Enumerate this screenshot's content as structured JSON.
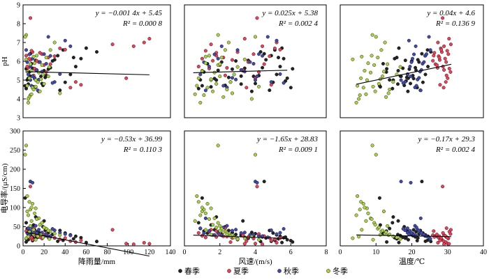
{
  "series_names": [
    "春季",
    "夏季",
    "秋季",
    "冬季"
  ],
  "series_colors": [
    "#222222",
    "#e8415a",
    "#4048a8",
    "#a8d040"
  ],
  "chart_data": [
    {
      "type": "scatter",
      "x_variable": "rain",
      "y_variable": "pH",
      "xlabel": "",
      "ylabel": "pH",
      "xlim": [
        0,
        140
      ],
      "ylim": [
        3,
        9
      ],
      "xticks": [],
      "yticks": [
        3,
        4,
        5,
        6,
        7,
        8,
        9
      ],
      "fit": {
        "slope": -0.0014,
        "intercept": 5.45
      },
      "equation": "y = −0.001 4x + 5.45",
      "r2": "R² = 0.000 8"
    },
    {
      "type": "scatter",
      "x_variable": "wind",
      "y_variable": "pH",
      "xlabel": "",
      "ylabel": "",
      "xlim": [
        0,
        8
      ],
      "ylim": [
        3,
        9
      ],
      "xticks": [],
      "yticks": [],
      "fit": {
        "slope": 0.025,
        "intercept": 5.38
      },
      "equation": "y = 0.025x + 5.38",
      "r2": "R² = 0.002 4"
    },
    {
      "type": "scatter",
      "x_variable": "temp",
      "y_variable": "pH",
      "xlabel": "",
      "ylabel": "",
      "xlim": [
        0,
        40
      ],
      "ylim": [
        3,
        9
      ],
      "xticks": [],
      "yticks": [],
      "fit": {
        "slope": 0.04,
        "intercept": 4.6
      },
      "equation": "y = 0.04x + 4.6",
      "r2": "R² = 0.136 9"
    },
    {
      "type": "scatter",
      "x_variable": "rain",
      "y_variable": "cond",
      "xlabel": "降雨量/mm",
      "ylabel": "电导率/(μS/cm)",
      "xlim": [
        0,
        140
      ],
      "ylim": [
        0,
        300
      ],
      "xticks": [
        0,
        20,
        40,
        60,
        80,
        100,
        120,
        140
      ],
      "yticks": [
        0,
        50,
        100,
        150,
        200,
        250,
        300
      ],
      "fit": {
        "slope": -0.53,
        "intercept": 36.99
      },
      "equation": "y = −0.53x + 36.99",
      "r2": "R² = 0.110 3"
    },
    {
      "type": "scatter",
      "x_variable": "wind",
      "y_variable": "cond",
      "xlabel": "风速/(m/s)",
      "ylabel": "",
      "xlim": [
        0,
        8
      ],
      "ylim": [
        0,
        300
      ],
      "xticks": [
        0,
        2,
        4,
        6,
        8
      ],
      "yticks": [],
      "fit": {
        "slope": -1.65,
        "intercept": 28.83
      },
      "equation": "y = −1.65x + 28.83",
      "r2": "R² = 0.009 1"
    },
    {
      "type": "scatter",
      "x_variable": "temp",
      "y_variable": "cond",
      "xlabel": "温度/℃",
      "ylabel": "",
      "xlim": [
        0,
        40
      ],
      "ylim": [
        0,
        300
      ],
      "xticks": [
        0,
        10,
        20,
        30,
        40
      ],
      "yticks": [],
      "fit": {
        "slope": -0.17,
        "intercept": 29.3
      },
      "equation": "y = −0.17x + 29.3",
      "r2": "R² = 0.002 4"
    }
  ],
  "points": [
    [
      5.0,
      3.2,
      16.1,
      4.79,
      29.4,
      0
    ],
    [
      7.0,
      3.2,
      16.8,
      5.21,
      26.9,
      0
    ],
    [
      9.0,
      3.4,
      17.5,
      5.63,
      22.4,
      0
    ],
    [
      12.0,
      3.6,
      18.2,
      6.05,
      19.8,
      0
    ],
    [
      15.0,
      3.8,
      18.9,
      4.4,
      35.1,
      0
    ],
    [
      18.0,
      4.0,
      19.6,
      4.82,
      31.8,
      0
    ],
    [
      22.0,
      4.2,
      20.3,
      5.24,
      26.7,
      0
    ],
    [
      26.0,
      4.4,
      21.0,
      5.66,
      23.3,
      0
    ],
    [
      30.0,
      4.6,
      21.7,
      6.08,
      20.6,
      0
    ],
    [
      35.0,
      4.8,
      22.4,
      4.46,
      40.1,
      0
    ],
    [
      40.0,
      5.0,
      23.1,
      4.88,
      33.5,
      0
    ],
    [
      45.0,
      5.2,
      23.8,
      5.3,
      28.7,
      0
    ],
    [
      50.0,
      5.4,
      24.5,
      5.72,
      25.1,
      0
    ],
    [
      55.0,
      5.6,
      15.2,
      6.14,
      21.2,
      0
    ],
    [
      3.0,
      0.8,
      14.6,
      4.55,
      60.3,
      0
    ],
    [
      4.0,
      0.9,
      13.8,
      5.01,
      45.2,
      0
    ],
    [
      6.0,
      1.1,
      12.9,
      5.43,
      38.6,
      0
    ],
    [
      8.0,
      1.3,
      12.0,
      5.87,
      33.1,
      0
    ],
    [
      10.0,
      1.5,
      11.2,
      4.64,
      54.6,
      0
    ],
    [
      11.0,
      1.7,
      20.5,
      5.08,
      42.0,
      0
    ],
    [
      13.0,
      1.9,
      21.2,
      5.52,
      36.7,
      0
    ],
    [
      16.0,
      2.1,
      22.0,
      5.96,
      31.3,
      0
    ],
    [
      19.0,
      2.3,
      17.9,
      4.72,
      49.8,
      0
    ],
    [
      21.0,
      2.5,
      18.6,
      5.14,
      40.2,
      0
    ],
    [
      24.0,
      2.7,
      19.3,
      5.58,
      34.5,
      0
    ],
    [
      28.0,
      2.9,
      20.0,
      6.02,
      29.9,
      0
    ],
    [
      33.0,
      4.9,
      23.8,
      6.3,
      12.0,
      0
    ],
    [
      38.0,
      5.1,
      24.4,
      6.6,
      14.5,
      0
    ],
    [
      48.0,
      5.3,
      15.8,
      6.2,
      18.3,
      0
    ],
    [
      60.0,
      5.5,
      16.4,
      6.7,
      8.7,
      0
    ],
    [
      70.0,
      4.3,
      25.3,
      6.5,
      11.4,
      0
    ],
    [
      2.0,
      1.0,
      11.0,
      4.7,
      125.0,
      0
    ],
    [
      12.0,
      1.8,
      14.8,
      5.0,
      75.4,
      0
    ],
    [
      20.0,
      3.3,
      16.2,
      5.5,
      65.1,
      0
    ],
    [
      3.0,
      6.1,
      13.0,
      5.6,
      10.2,
      0
    ],
    [
      5.0,
      5.8,
      19.0,
      5.1,
      16.0,
      0
    ],
    [
      9.0,
      6.0,
      21.5,
      4.6,
      13.6,
      0
    ],
    [
      14.0,
      5.7,
      18.4,
      4.95,
      22.9,
      0
    ],
    [
      7.0,
      4.5,
      22.8,
      6.4,
      168.0,
      0
    ],
    [
      17.0,
      3.9,
      17.0,
      5.2,
      24.7,
      0
    ],
    [
      5.0,
      2.4,
      27.2,
      5.65,
      24.1,
      1
    ],
    [
      7.0,
      2.7,
      27.8,
      6.07,
      20.3,
      1
    ],
    [
      9.0,
      3.0,
      28.4,
      6.49,
      16.2,
      1
    ],
    [
      12.0,
      3.3,
      29.0,
      5.54,
      28.1,
      1
    ],
    [
      15.0,
      3.6,
      29.6,
      5.96,
      23.2,
      1
    ],
    [
      18.0,
      3.9,
      30.2,
      6.38,
      19.1,
      1
    ],
    [
      22.0,
      4.2,
      30.8,
      5.43,
      31.1,
      1
    ],
    [
      26.0,
      4.5,
      26.6,
      5.85,
      25.5,
      1
    ],
    [
      30.0,
      4.8,
      27.5,
      6.27,
      21.0,
      1
    ],
    [
      35.0,
      5.1,
      28.1,
      6.69,
      17.3,
      1
    ],
    [
      4.0,
      0.8,
      28.7,
      5.72,
      33.8,
      1
    ],
    [
      6.0,
      1.0,
      29.3,
      6.14,
      26.3,
      1
    ],
    [
      8.0,
      1.2,
      29.9,
      6.56,
      21.9,
      1
    ],
    [
      11.0,
      1.4,
      30.5,
      5.61,
      37.0,
      1
    ],
    [
      13.0,
      1.6,
      25.9,
      6.03,
      28.0,
      1
    ],
    [
      16.0,
      1.8,
      26.3,
      6.45,
      23.3,
      1
    ],
    [
      20.0,
      2.0,
      27.0,
      5.8,
      29.7,
      1
    ],
    [
      24.0,
      2.2,
      27.7,
      6.2,
      24.9,
      1
    ],
    [
      40.0,
      5.4,
      28.2,
      6.62,
      20.4,
      1
    ],
    [
      45.0,
      3.5,
      28.9,
      4.6,
      12.3,
      1
    ],
    [
      50.0,
      2.6,
      29.5,
      4.9,
      9.8,
      1
    ],
    [
      98.0,
      4.0,
      30.0,
      5.1,
      6.0,
      1
    ],
    [
      105.0,
      4.4,
      29.0,
      6.8,
      4.2,
      1
    ],
    [
      115.0,
      5.2,
      27.3,
      7.0,
      8.1,
      1
    ],
    [
      120.0,
      3.4,
      30.4,
      7.2,
      5.5,
      1
    ],
    [
      85.0,
      1.5,
      30.9,
      6.9,
      42.0,
      1
    ],
    [
      7.0,
      4.1,
      28.6,
      8.3,
      155.0,
      1
    ],
    [
      3.0,
      1.8,
      26.1,
      6.3,
      38.5,
      1
    ],
    [
      55.0,
      4.9,
      27.9,
      4.75,
      14.2,
      1
    ],
    [
      10.0,
      2.3,
      29.7,
      5.25,
      46.1,
      1
    ],
    [
      5.0,
      0.9,
      18.8,
      5.3,
      46.0,
      2
    ],
    [
      7.0,
      1.4,
      19.5,
      5.72,
      39.2,
      2
    ],
    [
      9.0,
      1.9,
      20.2,
      6.14,
      32.8,
      2
    ],
    [
      12.0,
      2.4,
      20.9,
      4.61,
      52.3,
      2
    ],
    [
      15.0,
      2.9,
      21.6,
      5.03,
      42.4,
      2
    ],
    [
      18.0,
      3.4,
      22.3,
      5.45,
      35.0,
      2
    ],
    [
      22.0,
      3.9,
      23.0,
      5.87,
      29.8,
      2
    ],
    [
      26.0,
      4.4,
      23.7,
      6.29,
      25.6,
      2
    ],
    [
      30.0,
      4.9,
      18.1,
      4.9,
      40.7,
      2
    ],
    [
      35.0,
      5.4,
      18.8,
      5.32,
      34.2,
      2
    ],
    [
      4.0,
      1.1,
      19.9,
      5.95,
      33.3,
      2
    ],
    [
      6.0,
      1.7,
      20.6,
      6.37,
      28.6,
      2
    ],
    [
      8.0,
      2.2,
      21.3,
      4.7,
      48.1,
      2
    ],
    [
      11.0,
      2.7,
      22.0,
      5.12,
      39.9,
      2
    ],
    [
      13.0,
      3.2,
      22.7,
      5.54,
      33.7,
      2
    ],
    [
      16.0,
      3.7,
      23.4,
      5.96,
      28.9,
      2
    ],
    [
      20.0,
      4.2,
      24.1,
      6.38,
      25.0,
      2
    ],
    [
      24.0,
      4.7,
      24.8,
      7.3,
      22.4,
      2
    ],
    [
      40.0,
      5.2,
      19.2,
      7.1,
      30.8,
      2
    ],
    [
      45.0,
      2.1,
      21.1,
      6.8,
      27.3,
      2
    ],
    [
      7.0,
      4.0,
      17.0,
      5.0,
      168.0,
      2
    ],
    [
      9.0,
      4.1,
      19.7,
      5.2,
      165.0,
      2
    ],
    [
      14.0,
      1.2,
      22.5,
      4.45,
      72.0,
      2
    ],
    [
      3.0,
      3.0,
      25.2,
      6.6,
      18.7,
      2
    ],
    [
      28.0,
      5.6,
      17.6,
      4.85,
      44.3,
      2
    ],
    [
      5.0,
      0.9,
      4.5,
      3.8,
      80.0,
      3
    ],
    [
      7.0,
      1.1,
      5.5,
      4.2,
      95.0,
      3
    ],
    [
      9.0,
      1.3,
      6.5,
      4.6,
      110.0,
      3
    ],
    [
      12.0,
      1.5,
      7.5,
      5.0,
      98.0,
      3
    ],
    [
      15.0,
      1.7,
      8.5,
      5.4,
      72.0,
      3
    ],
    [
      18.0,
      1.9,
      9.5,
      5.8,
      60.0,
      3
    ],
    [
      22.0,
      2.1,
      10.5,
      6.2,
      45.0,
      3
    ],
    [
      26.0,
      2.3,
      11.5,
      6.6,
      38.0,
      3
    ],
    [
      30.0,
      2.5,
      12.5,
      7.0,
      32.0,
      3
    ],
    [
      35.0,
      2.7,
      13.5,
      4.3,
      28.0,
      3
    ],
    [
      4.0,
      0.7,
      4.8,
      4.7,
      130.0,
      3
    ],
    [
      6.0,
      0.8,
      5.8,
      5.1,
      115.0,
      3
    ],
    [
      8.0,
      1.0,
      6.8,
      5.5,
      100.0,
      3
    ],
    [
      11.0,
      1.2,
      7.8,
      5.9,
      85.0,
      3
    ],
    [
      13.0,
      1.4,
      8.8,
      6.3,
      70.0,
      3
    ],
    [
      16.0,
      1.6,
      9.8,
      4.4,
      55.0,
      3
    ],
    [
      20.0,
      1.8,
      10.8,
      4.8,
      48.0,
      3
    ],
    [
      24.0,
      2.0,
      11.8,
      5.2,
      40.0,
      3
    ],
    [
      3.0,
      1.9,
      9.0,
      7.4,
      262.0,
      3
    ],
    [
      2.0,
      4.0,
      10.0,
      7.3,
      238.0,
      3
    ],
    [
      6.0,
      2.2,
      12.8,
      4.1,
      36.0,
      3
    ],
    [
      10.0,
      2.4,
      13.8,
      4.5,
      30.0,
      3
    ],
    [
      14.0,
      2.6,
      14.8,
      4.9,
      25.0,
      3
    ],
    [
      19.0,
      2.8,
      15.8,
      5.3,
      22.0,
      3
    ],
    [
      25.0,
      3.0,
      16.8,
      5.7,
      18.0,
      3
    ],
    [
      3.0,
      3.4,
      3.5,
      6.1,
      20.0,
      3
    ],
    [
      5.0,
      3.8,
      5.2,
      4.0,
      24.0,
      3
    ],
    [
      8.0,
      0.6,
      7.2,
      4.25,
      65.0,
      3
    ],
    [
      12.0,
      4.2,
      9.2,
      4.65,
      16.0,
      3
    ],
    [
      17.0,
      1.5,
      11.2,
      5.05,
      29.0,
      3
    ],
    [
      4.0,
      1.0,
      12.2,
      5.45,
      90.0,
      3
    ],
    [
      7.0,
      2.0,
      13.2,
      5.85,
      52.0,
      3
    ],
    [
      10.0,
      1.2,
      6.0,
      6.25,
      42.0,
      3
    ]
  ]
}
